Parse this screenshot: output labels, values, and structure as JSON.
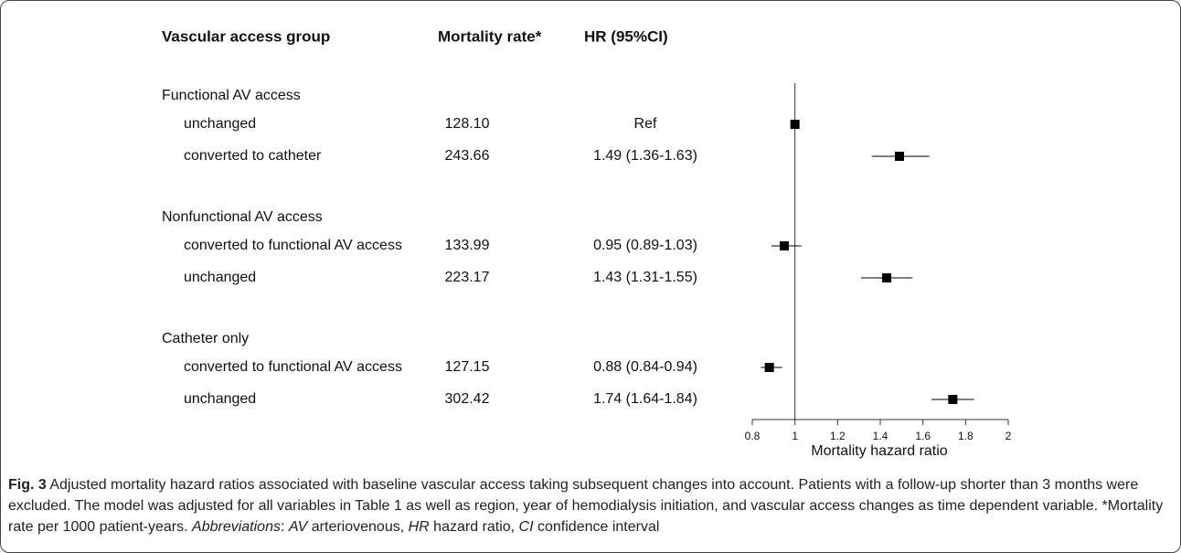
{
  "chart_data": {
    "type": "forest",
    "columns": [
      "Vascular access group",
      "Mortality rate*",
      "HR (95%CI)"
    ],
    "groups": [
      {
        "name": "Functional AV access",
        "rows": [
          {
            "label": "unchanged",
            "rate": "128.10",
            "hr_label": "Ref",
            "hr": 1,
            "lo": null,
            "hi": null
          },
          {
            "label": "converted to catheter",
            "rate": "243.66",
            "hr_label": "1.49 (1.36-1.63)",
            "hr": 1.49,
            "lo": 1.36,
            "hi": 1.63
          }
        ]
      },
      {
        "name": "Nonfunctional AV access",
        "rows": [
          {
            "label": "converted to functional AV access",
            "rate": "133.99",
            "hr_label": "0.95 (0.89-1.03)",
            "hr": 0.95,
            "lo": 0.89,
            "hi": 1.03
          },
          {
            "label": "unchanged",
            "rate": "223.17",
            "hr_label": "1.43 (1.31-1.55)",
            "hr": 1.43,
            "lo": 1.31,
            "hi": 1.55
          }
        ]
      },
      {
        "name": "Catheter only",
        "rows": [
          {
            "label": "converted to functional AV access",
            "rate": "127.15",
            "hr_label": "0.88 (0.84-0.94)",
            "hr": 0.88,
            "lo": 0.84,
            "hi": 0.94
          },
          {
            "label": "unchanged",
            "rate": "302.42",
            "hr_label": "1.74 (1.64-1.84)",
            "hr": 1.74,
            "lo": 1.64,
            "hi": 1.84
          }
        ]
      }
    ],
    "reference": 1,
    "xlabel": "Mortality hazard ratio",
    "xlim": [
      0.8,
      2
    ],
    "xticks": [
      0.8,
      1,
      1.2,
      1.4,
      1.6,
      1.8,
      2
    ],
    "color": "#000000"
  },
  "caption": [
    {
      "text": "Fig. 3",
      "style": "bold"
    },
    {
      "text": " Adjusted mortality hazard ratios associated with baseline vascular access taking subsequent changes into account. Patients with a follow-up shorter than 3 months were excluded. The model was adjusted for all variables in Table 1 as well as region, year of hemodialysis initiation, and vascular access changes as time dependent variable. *Mortality rate per 1000 patient-years. ",
      "style": "normal"
    },
    {
      "text": "Abbreviations",
      "style": "italic"
    },
    {
      "text": ": ",
      "style": "normal"
    },
    {
      "text": "AV",
      "style": "italic"
    },
    {
      "text": " arteriovenous, ",
      "style": "normal"
    },
    {
      "text": "HR",
      "style": "italic"
    },
    {
      "text": " hazard ratio, ",
      "style": "normal"
    },
    {
      "text": "CI",
      "style": "italic"
    },
    {
      "text": " confidence interval",
      "style": "normal"
    }
  ]
}
